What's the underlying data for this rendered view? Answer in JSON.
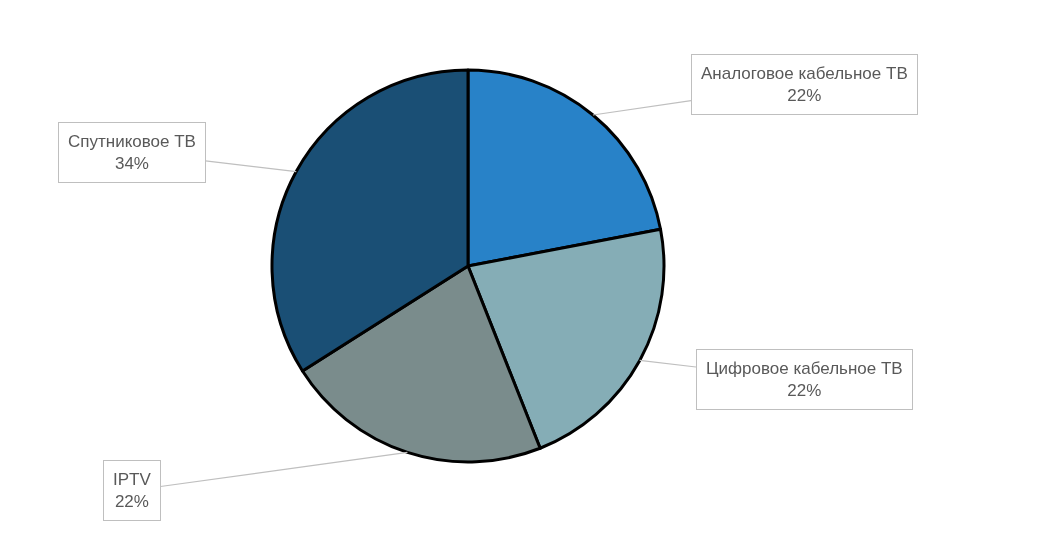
{
  "chart_data": {
    "type": "pie",
    "categories": [
      "Аналоговое кабельное ТВ",
      "Цифровое кабельное ТВ",
      "IPTV",
      "Спутниковое ТВ"
    ],
    "values": [
      22,
      22,
      22,
      34
    ],
    "value_labels": [
      "22%",
      "22%",
      "22%",
      "34%"
    ],
    "colors": [
      "#2882c8",
      "#85adb6",
      "#7a8c8c",
      "#1a4f75"
    ],
    "legend": false
  }
}
